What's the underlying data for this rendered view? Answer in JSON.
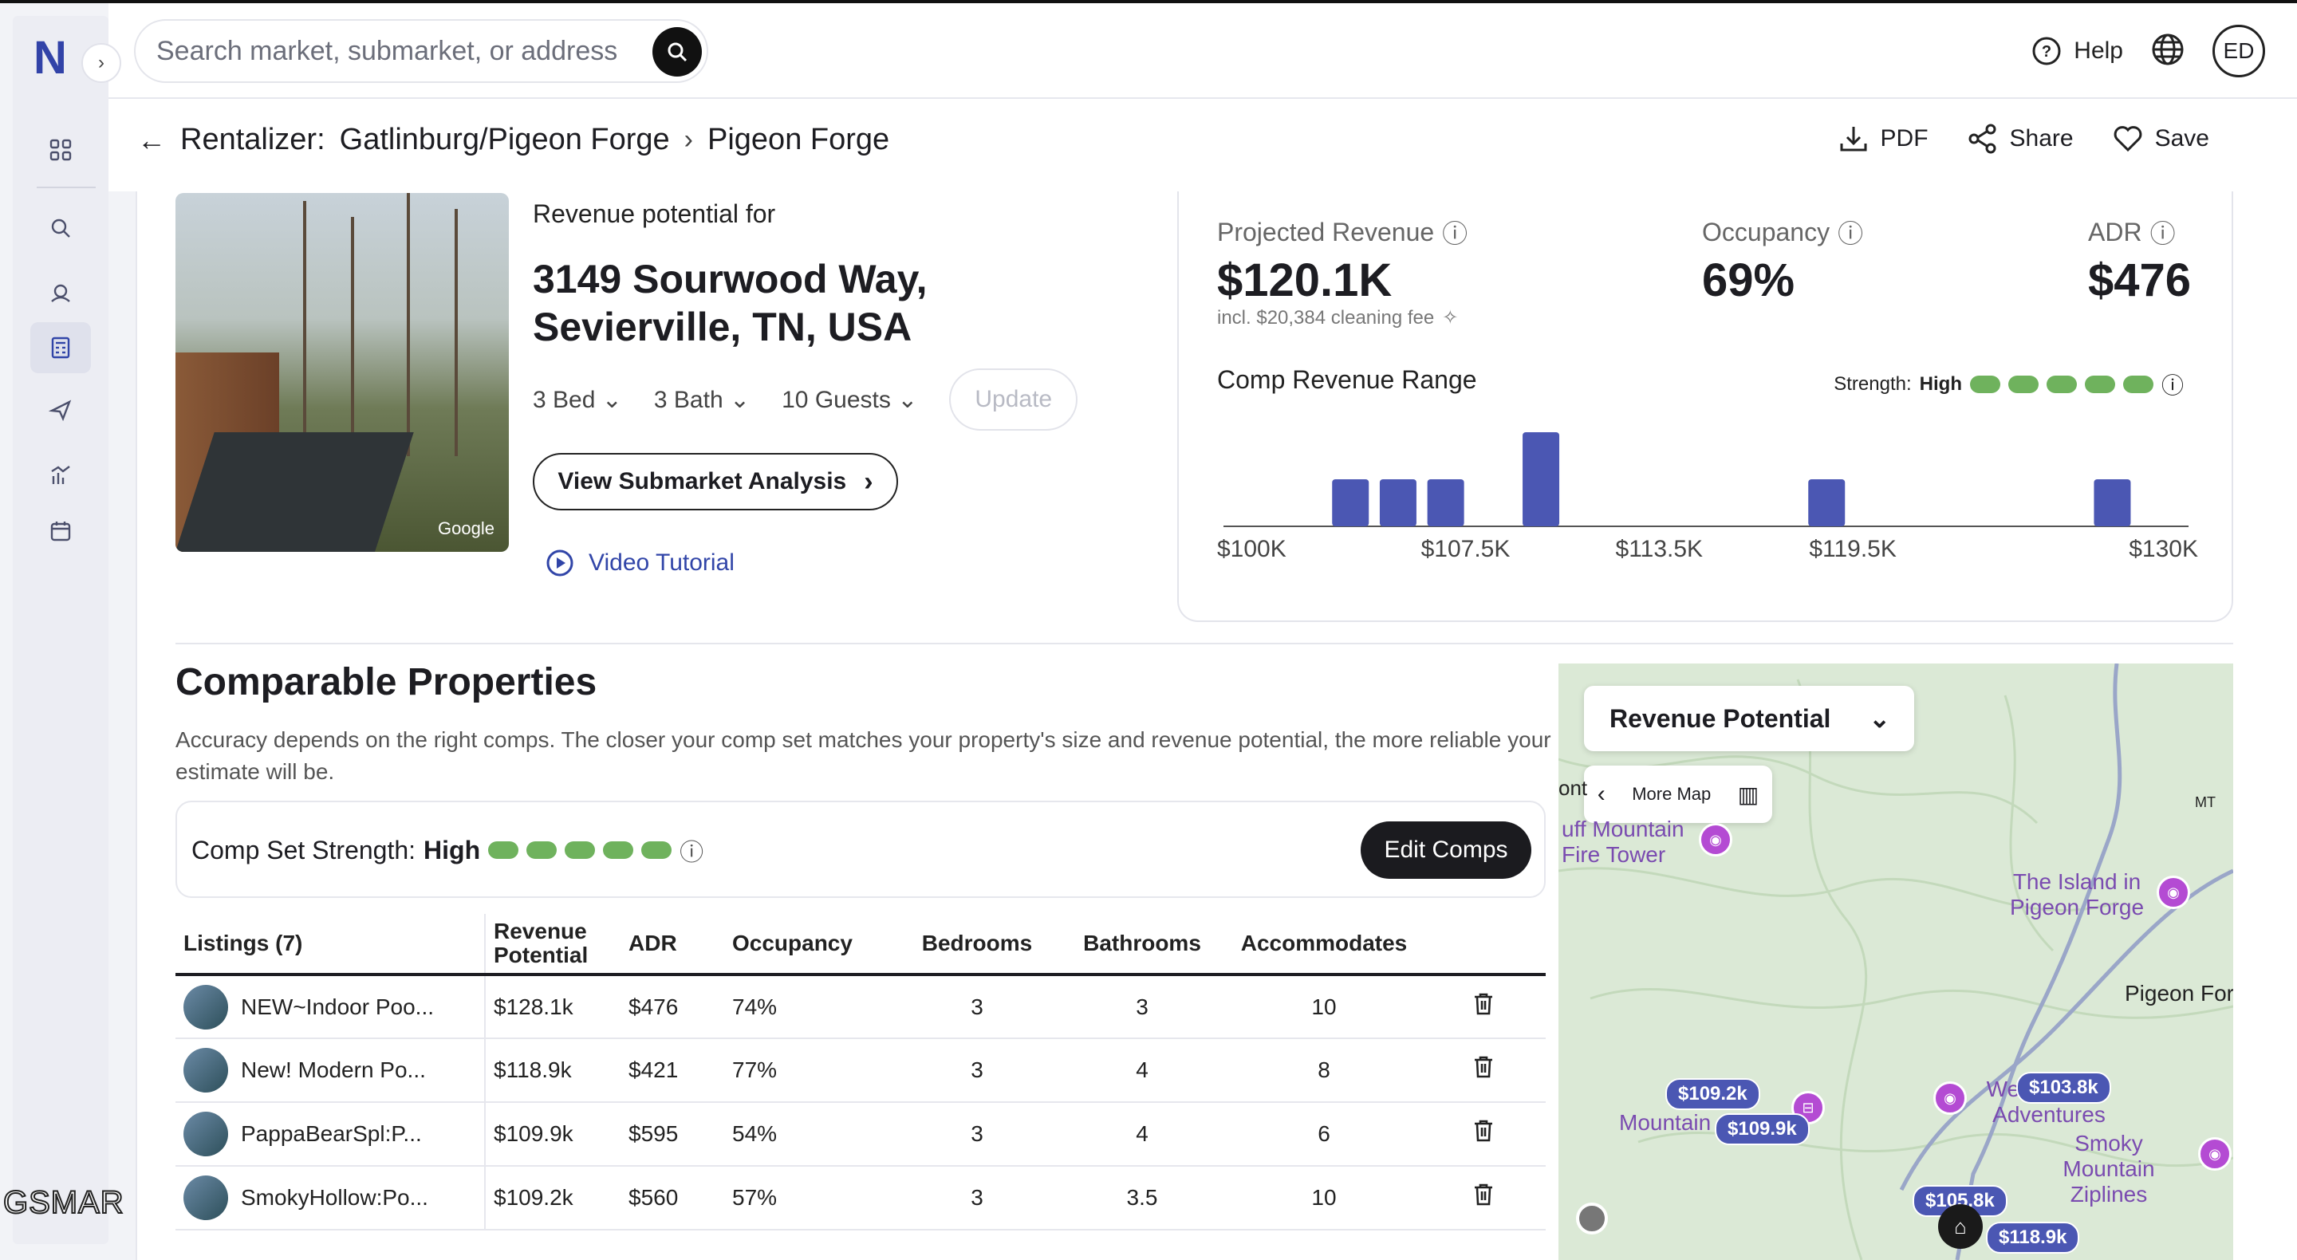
{
  "header": {
    "search_placeholder": "Search market, submarket, or address",
    "help_label": "Help",
    "avatar_initials": "ED"
  },
  "breadcrumb": {
    "root": "Rentalizer:",
    "market": "Gatlinburg/Pigeon Forge",
    "submarket": "Pigeon Forge"
  },
  "actions": {
    "pdf": "PDF",
    "share": "Share",
    "save": "Save"
  },
  "property": {
    "photo_credit": "Google",
    "revenue_for": "Revenue potential for",
    "address": "3149 Sourwood Way, Sevierville, TN, USA",
    "bed": "3 Bed",
    "bath": "3 Bath",
    "guests": "10 Guests",
    "update_label": "Update",
    "submarket_button": "View Submarket Analysis",
    "video_tutorial": "Video Tutorial"
  },
  "metrics": {
    "projected_label": "Projected Revenue",
    "projected_value": "$120.1K",
    "cleaning_note": "incl. $20,384 cleaning fee",
    "occupancy_label": "Occupancy",
    "occupancy_value": "69%",
    "adr_label": "ADR",
    "adr_value": "$476",
    "range_label": "Comp Revenue Range",
    "strength_label": "Strength:",
    "strength_value": "High"
  },
  "chart_data": {
    "type": "bar",
    "x_ticks": [
      "$100K",
      "$107.5K",
      "$113.5K",
      "$119.5K",
      "$130K"
    ],
    "x_tick_values": [
      100,
      107.5,
      113.5,
      119.5,
      130
    ],
    "bins": [
      {
        "x": 103.8,
        "count": 1
      },
      {
        "x": 105.3,
        "count": 1
      },
      {
        "x": 106.8,
        "count": 1
      },
      {
        "x": 109.8,
        "count": 2
      },
      {
        "x": 118.8,
        "count": 1
      },
      {
        "x": 127.8,
        "count": 1
      }
    ],
    "xlim": [
      100,
      130
    ],
    "ylim": [
      0,
      2
    ]
  },
  "comps": {
    "title": "Comparable Properties",
    "description": "Accuracy depends on the right comps. The closer your comp set matches your property's size and revenue potential, the more reliable your estimate will be.",
    "strength_label": "Comp Set Strength:",
    "strength_value": "High",
    "edit_button": "Edit Comps",
    "columns": [
      "Listings (7)",
      "Revenue Potential",
      "ADR",
      "Occupancy",
      "Bedrooms",
      "Bathrooms",
      "Accommodates"
    ],
    "rows": [
      {
        "name": "NEW~Indoor Poo...",
        "revenue": "$128.1k",
        "adr": "$476",
        "occ": "74%",
        "bed": "3",
        "bath": "3",
        "acc": "10"
      },
      {
        "name": "New! Modern Po...",
        "revenue": "$118.9k",
        "adr": "$421",
        "occ": "77%",
        "bed": "3",
        "bath": "4",
        "acc": "8"
      },
      {
        "name": "PappaBearSpl:P...",
        "revenue": "$109.9k",
        "adr": "$595",
        "occ": "54%",
        "bed": "3",
        "bath": "4",
        "acc": "6"
      },
      {
        "name": "SmokyHollow:Po...",
        "revenue": "$109.2k",
        "adr": "$560",
        "occ": "57%",
        "bed": "3",
        "bath": "3.5",
        "acc": "10"
      }
    ]
  },
  "map": {
    "select_label": "Revenue Potential",
    "more_map": "More Map",
    "places": {
      "fire_tower": "uff Mountain Fire Tower",
      "island": "The Island in Pigeon Forge",
      "pigeon_forge": "Pigeon For",
      "zipline_adv": "Wear Zipline Adventures",
      "smoky_ziplines": "Smoky Mountain Ziplines",
      "mountain": "Mountain",
      "ont": "ont",
      "mt": "MT"
    },
    "prices": [
      "$109.2k",
      "$109.9k",
      "$103.8k",
      "$105.8k",
      "$118.9k"
    ]
  },
  "watermark": "GSMAR"
}
